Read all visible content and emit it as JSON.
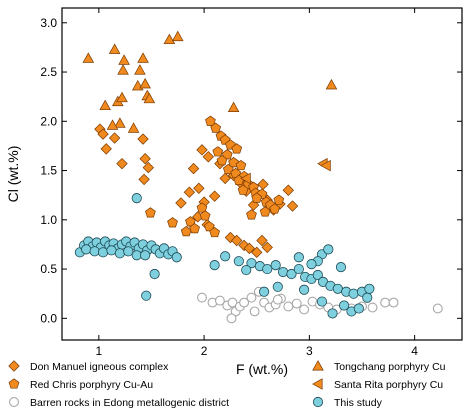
{
  "chart_data": {
    "type": "scatter",
    "xlabel": "F (wt.%)",
    "ylabel": "Cl (wt.%)",
    "xlim": [
      0.65,
      4.45
    ],
    "ylim": [
      -0.22,
      3.15
    ],
    "xticks": [
      1,
      2,
      3,
      4
    ],
    "yticks": [
      0.0,
      0.5,
      1.0,
      1.5,
      2.0,
      2.5,
      3.0
    ],
    "xtick_labels": [
      "1",
      "2",
      "3",
      "4"
    ],
    "ytick_labels": [
      "0.0",
      "0.5",
      "1.0",
      "1.5",
      "2.0",
      "2.5",
      "3.0"
    ],
    "grid": false,
    "legend_position": "bottom",
    "series": [
      {
        "name": "Don Manuel igneous complex",
        "marker": "diamond",
        "color": "#F08A1E",
        "points": [
          [
            1.01,
            1.92
          ],
          [
            1.04,
            1.87
          ],
          [
            1.07,
            1.72
          ],
          [
            1.15,
            1.83
          ],
          [
            1.22,
            1.57
          ],
          [
            1.42,
            1.82
          ],
          [
            1.44,
            1.62
          ],
          [
            1.43,
            1.41
          ],
          [
            1.47,
            1.53
          ],
          [
            1.78,
            1.17
          ],
          [
            1.98,
            1.71
          ],
          [
            2.04,
            1.64
          ],
          [
            1.9,
            1.52
          ],
          [
            1.95,
            1.32
          ],
          [
            1.86,
            1.28
          ],
          [
            2.0,
            1.18
          ],
          [
            2.1,
            1.24
          ],
          [
            2.15,
            1.57
          ],
          [
            2.2,
            1.42
          ],
          [
            2.28,
            1.45
          ],
          [
            2.35,
            1.37
          ],
          [
            2.4,
            1.29
          ],
          [
            2.47,
            1.15
          ],
          [
            2.52,
            1.25
          ],
          [
            2.56,
            1.36
          ],
          [
            2.6,
            1.2
          ],
          [
            2.66,
            1.1
          ],
          [
            2.72,
            1.16
          ],
          [
            2.8,
            1.3
          ],
          [
            2.84,
            1.14
          ],
          [
            1.94,
            1.03
          ],
          [
            2.03,
            0.95
          ],
          [
            2.25,
            0.82
          ],
          [
            2.31,
            0.79
          ],
          [
            2.38,
            0.74
          ],
          [
            2.43,
            0.71
          ],
          [
            2.5,
            0.67
          ],
          [
            2.55,
            0.79
          ],
          [
            2.6,
            0.72
          ]
        ]
      },
      {
        "name": "Red Chris porphyry Cu-Au",
        "marker": "pentagon",
        "color": "#F08A1E",
        "points": [
          [
            1.49,
            1.07
          ],
          [
            1.7,
            0.97
          ],
          [
            1.83,
            0.88
          ],
          [
            1.87,
            0.98
          ],
          [
            1.91,
            0.91
          ],
          [
            1.98,
            1.12
          ],
          [
            2.01,
            1.04
          ],
          [
            2.05,
            0.93
          ],
          [
            2.1,
            0.87
          ],
          [
            2.06,
            2.0
          ],
          [
            2.11,
            1.93
          ],
          [
            2.16,
            1.85
          ],
          [
            2.2,
            1.81
          ],
          [
            2.25,
            1.76
          ],
          [
            2.31,
            1.72
          ],
          [
            2.13,
            1.69
          ],
          [
            2.22,
            1.66
          ],
          [
            2.17,
            1.6
          ],
          [
            2.28,
            1.58
          ],
          [
            2.35,
            1.55
          ],
          [
            2.23,
            1.51
          ],
          [
            2.3,
            1.47
          ],
          [
            2.38,
            1.44
          ],
          [
            2.33,
            1.4
          ],
          [
            2.42,
            1.36
          ],
          [
            2.47,
            1.33
          ],
          [
            2.37,
            1.3
          ],
          [
            2.49,
            1.27
          ],
          [
            2.55,
            1.26
          ],
          [
            2.5,
            1.22
          ],
          [
            2.59,
            1.18
          ],
          [
            2.63,
            1.15
          ],
          [
            2.67,
            1.11
          ],
          [
            2.58,
            1.08
          ],
          [
            2.71,
            1.2
          ],
          [
            2.45,
            1.05
          ]
        ]
      },
      {
        "name": "Tongchang porphyry Cu",
        "marker": "triangle-up",
        "color": "#F08A1E",
        "points": [
          [
            0.9,
            2.64
          ],
          [
            1.15,
            2.73
          ],
          [
            1.24,
            2.62
          ],
          [
            1.42,
            2.64
          ],
          [
            1.39,
            2.52
          ],
          [
            1.67,
            2.83
          ],
          [
            1.75,
            2.86
          ],
          [
            1.23,
            2.52
          ],
          [
            1.37,
            2.36
          ],
          [
            1.18,
            2.2
          ],
          [
            1.22,
            2.24
          ],
          [
            1.06,
            2.16
          ],
          [
            1.46,
            2.26
          ],
          [
            1.44,
            2.38
          ],
          [
            1.48,
            2.23
          ],
          [
            2.28,
            2.14
          ],
          [
            3.21,
            2.37
          ],
          [
            1.2,
            1.98
          ],
          [
            1.13,
            1.96
          ],
          [
            1.33,
            1.93
          ]
        ]
      },
      {
        "name": "Santa Rita porphyry Cu",
        "marker": "triangle-left",
        "color": "#F08A1E",
        "points": [
          [
            3.13,
            1.57
          ],
          [
            3.16,
            1.55
          ],
          [
            2.4,
            1.42
          ]
        ]
      },
      {
        "name": "Barren rocks in Edong metallogenic district",
        "marker": "circle-open",
        "color": "#A8A8A8",
        "points": [
          [
            1.98,
            0.21
          ],
          [
            2.08,
            0.16
          ],
          [
            2.15,
            0.18
          ],
          [
            2.22,
            0.13
          ],
          [
            2.27,
            0.16
          ],
          [
            2.3,
            0.07
          ],
          [
            2.34,
            0.12
          ],
          [
            2.38,
            0.16
          ],
          [
            2.45,
            0.21
          ],
          [
            2.52,
            0.27
          ],
          [
            2.57,
            0.16
          ],
          [
            2.62,
            0.11
          ],
          [
            2.68,
            0.14
          ],
          [
            2.73,
            0.2
          ],
          [
            2.8,
            0.12
          ],
          [
            2.88,
            0.15
          ],
          [
            2.95,
            0.09
          ],
          [
            3.03,
            0.17
          ],
          [
            3.1,
            0.14
          ],
          [
            3.18,
            0.11
          ],
          [
            3.26,
            0.09
          ],
          [
            3.33,
            0.13
          ],
          [
            3.4,
            0.1
          ],
          [
            3.5,
            0.12
          ],
          [
            3.6,
            0.11
          ],
          [
            3.72,
            0.16
          ],
          [
            3.8,
            0.16
          ],
          [
            4.22,
            0.1
          ],
          [
            2.26,
            0.0
          ],
          [
            2.48,
            0.07
          ],
          [
            2.7,
            0.19
          ]
        ]
      },
      {
        "name": "This study",
        "marker": "circle",
        "color": "#7FD0DE",
        "points": [
          [
            0.82,
            0.67
          ],
          [
            0.86,
            0.74
          ],
          [
            0.9,
            0.78
          ],
          [
            0.94,
            0.73
          ],
          [
            0.98,
            0.77
          ],
          [
            1.02,
            0.72
          ],
          [
            1.06,
            0.78
          ],
          [
            1.1,
            0.74
          ],
          [
            1.14,
            0.76
          ],
          [
            1.18,
            0.71
          ],
          [
            1.22,
            0.75
          ],
          [
            1.26,
            0.78
          ],
          [
            1.3,
            0.73
          ],
          [
            1.34,
            0.77
          ],
          [
            1.38,
            0.71
          ],
          [
            1.42,
            0.75
          ],
          [
            1.46,
            0.69
          ],
          [
            1.5,
            0.74
          ],
          [
            1.54,
            0.7
          ],
          [
            1.58,
            0.66
          ],
          [
            1.62,
            0.71
          ],
          [
            1.66,
            0.65
          ],
          [
            1.7,
            0.68
          ],
          [
            1.74,
            0.62
          ],
          [
            0.88,
            0.7
          ],
          [
            0.96,
            0.68
          ],
          [
            1.04,
            0.67
          ],
          [
            1.12,
            0.69
          ],
          [
            1.2,
            0.66
          ],
          [
            1.28,
            0.68
          ],
          [
            1.36,
            0.64
          ],
          [
            1.44,
            0.64
          ],
          [
            1.36,
            1.22
          ],
          [
            1.53,
            0.45
          ],
          [
            1.45,
            0.23
          ],
          [
            2.1,
            0.54
          ],
          [
            2.2,
            0.63
          ],
          [
            2.33,
            0.58
          ],
          [
            2.45,
            0.56
          ],
          [
            2.53,
            0.53
          ],
          [
            2.6,
            0.5
          ],
          [
            2.68,
            0.54
          ],
          [
            2.75,
            0.47
          ],
          [
            2.83,
            0.45
          ],
          [
            2.9,
            0.5
          ],
          [
            2.96,
            0.42
          ],
          [
            3.02,
            0.4
          ],
          [
            3.08,
            0.44
          ],
          [
            3.13,
            0.37
          ],
          [
            3.2,
            0.33
          ],
          [
            3.27,
            0.3
          ],
          [
            3.35,
            0.27
          ],
          [
            3.42,
            0.25
          ],
          [
            3.5,
            0.27
          ],
          [
            3.55,
            0.21
          ],
          [
            3.12,
            0.65
          ],
          [
            3.18,
            0.7
          ],
          [
            3.08,
            0.58
          ],
          [
            3.02,
            0.55
          ],
          [
            3.12,
            0.17
          ],
          [
            3.22,
            0.05
          ],
          [
            3.33,
            0.13
          ],
          [
            3.4,
            0.07
          ],
          [
            3.47,
            0.1
          ],
          [
            3.57,
            0.3
          ],
          [
            3.3,
            0.52
          ],
          [
            2.9,
            0.62
          ],
          [
            2.7,
            0.32
          ],
          [
            2.4,
            0.49
          ],
          [
            2.57,
            0.27
          ],
          [
            2.95,
            0.29
          ]
        ]
      }
    ]
  }
}
